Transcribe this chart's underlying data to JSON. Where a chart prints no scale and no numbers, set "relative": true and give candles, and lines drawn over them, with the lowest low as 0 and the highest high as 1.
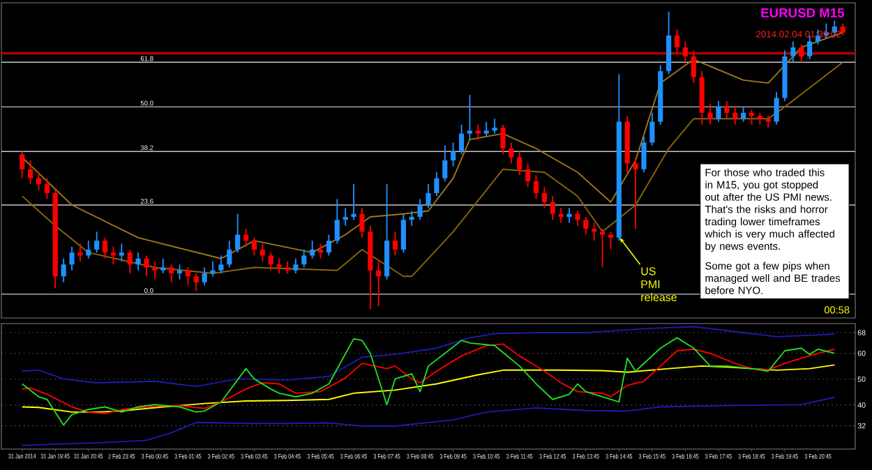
{
  "chart_data": [
    {
      "type": "candlestick",
      "relative": true,
      "title": "EURUSD M15",
      "tick_labels": false,
      "categories": [
        null,
        null,
        null,
        null,
        null,
        null,
        null,
        null,
        null,
        null,
        null,
        null,
        null,
        null,
        null,
        null,
        null,
        null,
        null,
        null,
        null,
        null,
        null,
        null,
        null,
        null,
        null,
        null,
        null,
        null,
        null,
        null,
        null,
        null,
        null,
        null,
        null,
        null,
        null,
        null,
        null,
        null,
        null,
        null,
        null,
        null,
        null,
        null,
        null,
        null,
        null,
        null,
        null,
        null,
        null,
        null,
        null,
        null,
        null,
        null,
        null,
        null,
        null,
        null,
        null,
        null,
        null,
        null,
        null,
        null,
        null,
        null,
        null,
        null,
        null,
        null,
        null,
        null,
        null,
        null,
        null,
        null,
        null,
        null,
        null,
        null,
        null,
        null,
        null,
        null,
        null,
        null,
        null,
        null,
        null,
        null,
        null,
        null,
        null,
        null
      ],
      "ohlc": [
        [
          0.52,
          0.53,
          0.44,
          0.47
        ],
        [
          0.47,
          0.5,
          0.42,
          0.44
        ],
        [
          0.44,
          0.46,
          0.4,
          0.42
        ],
        [
          0.42,
          0.44,
          0.37,
          0.39
        ],
        [
          0.39,
          0.4,
          0.07,
          0.11
        ],
        [
          0.11,
          0.17,
          0.09,
          0.15
        ],
        [
          0.15,
          0.21,
          0.13,
          0.19
        ],
        [
          0.19,
          0.22,
          0.16,
          0.18
        ],
        [
          0.18,
          0.23,
          0.17,
          0.2
        ],
        [
          0.2,
          0.26,
          0.19,
          0.23
        ],
        [
          0.23,
          0.24,
          0.17,
          0.19
        ],
        [
          0.19,
          0.21,
          0.15,
          0.18
        ],
        [
          0.18,
          0.22,
          0.16,
          0.19
        ],
        [
          0.19,
          0.2,
          0.12,
          0.15
        ],
        [
          0.15,
          0.19,
          0.13,
          0.17
        ],
        [
          0.17,
          0.18,
          0.11,
          0.14
        ],
        [
          0.14,
          0.16,
          0.1,
          0.13
        ],
        [
          0.13,
          0.17,
          0.12,
          0.14
        ],
        [
          0.14,
          0.15,
          0.09,
          0.12
        ],
        [
          0.12,
          0.15,
          0.1,
          0.13
        ],
        [
          0.13,
          0.14,
          0.08,
          0.11
        ],
        [
          0.11,
          0.12,
          0.06,
          0.09
        ],
        [
          0.09,
          0.14,
          0.08,
          0.12
        ],
        [
          0.12,
          0.16,
          0.11,
          0.13
        ],
        [
          0.13,
          0.18,
          0.12,
          0.15
        ],
        [
          0.15,
          0.23,
          0.14,
          0.2
        ],
        [
          0.2,
          0.32,
          0.19,
          0.25
        ],
        [
          0.25,
          0.27,
          0.21,
          0.23
        ],
        [
          0.23,
          0.24,
          0.18,
          0.2
        ],
        [
          0.2,
          0.22,
          0.16,
          0.18
        ],
        [
          0.18,
          0.19,
          0.13,
          0.15
        ],
        [
          0.15,
          0.17,
          0.12,
          0.14
        ],
        [
          0.14,
          0.16,
          0.12,
          0.13
        ],
        [
          0.13,
          0.17,
          0.12,
          0.15
        ],
        [
          0.15,
          0.2,
          0.14,
          0.18
        ],
        [
          0.18,
          0.23,
          0.17,
          0.2
        ],
        [
          0.2,
          0.22,
          0.17,
          0.19
        ],
        [
          0.19,
          0.25,
          0.18,
          0.23
        ],
        [
          0.23,
          0.37,
          0.22,
          0.3
        ],
        [
          0.3,
          0.34,
          0.28,
          0.31
        ],
        [
          0.31,
          0.42,
          0.3,
          0.32
        ],
        [
          0.32,
          0.34,
          0.24,
          0.26
        ],
        [
          0.26,
          0.28,
          0.0,
          0.13
        ],
        [
          0.13,
          0.16,
          0.01,
          0.11
        ],
        [
          0.11,
          0.42,
          0.1,
          0.23
        ],
        [
          0.23,
          0.26,
          0.18,
          0.2
        ],
        [
          0.2,
          0.32,
          0.19,
          0.3
        ],
        [
          0.3,
          0.33,
          0.28,
          0.31
        ],
        [
          0.31,
          0.37,
          0.3,
          0.35
        ],
        [
          0.35,
          0.42,
          0.34,
          0.39
        ],
        [
          0.39,
          0.46,
          0.38,
          0.44
        ],
        [
          0.44,
          0.55,
          0.43,
          0.5
        ],
        [
          0.5,
          0.56,
          0.48,
          0.53
        ],
        [
          0.53,
          0.62,
          0.52,
          0.59
        ],
        [
          0.59,
          0.72,
          0.57,
          0.6
        ],
        [
          0.6,
          0.62,
          0.57,
          0.59
        ],
        [
          0.59,
          0.63,
          0.58,
          0.6
        ],
        [
          0.6,
          0.64,
          0.59,
          0.61
        ],
        [
          0.61,
          0.62,
          0.52,
          0.54
        ],
        [
          0.54,
          0.56,
          0.49,
          0.51
        ],
        [
          0.51,
          0.53,
          0.45,
          0.47
        ],
        [
          0.47,
          0.49,
          0.41,
          0.43
        ],
        [
          0.43,
          0.45,
          0.37,
          0.39
        ],
        [
          0.39,
          0.41,
          0.34,
          0.36
        ],
        [
          0.36,
          0.38,
          0.3,
          0.32
        ],
        [
          0.32,
          0.34,
          0.29,
          0.31
        ],
        [
          0.31,
          0.34,
          0.29,
          0.32
        ],
        [
          0.32,
          0.33,
          0.28,
          0.3
        ],
        [
          0.3,
          0.31,
          0.25,
          0.27
        ],
        [
          0.27,
          0.29,
          0.23,
          0.26
        ],
        [
          0.26,
          0.27,
          0.14,
          0.25
        ],
        [
          0.25,
          0.26,
          0.2,
          0.24
        ],
        [
          0.24,
          0.79,
          0.23,
          0.63
        ],
        [
          0.63,
          0.65,
          0.46,
          0.49
        ],
        [
          0.49,
          0.51,
          0.27,
          0.47
        ],
        [
          0.47,
          0.58,
          0.46,
          0.56
        ],
        [
          0.56,
          0.66,
          0.55,
          0.63
        ],
        [
          0.63,
          0.82,
          0.62,
          0.8
        ],
        [
          0.8,
          1.0,
          0.79,
          0.92
        ],
        [
          0.92,
          0.94,
          0.86,
          0.88
        ],
        [
          0.88,
          0.9,
          0.83,
          0.85
        ],
        [
          0.85,
          0.87,
          0.76,
          0.78
        ],
        [
          0.78,
          0.8,
          0.62,
          0.66
        ],
        [
          0.66,
          0.69,
          0.62,
          0.64
        ],
        [
          0.64,
          0.7,
          0.63,
          0.68
        ],
        [
          0.68,
          0.7,
          0.64,
          0.66
        ],
        [
          0.66,
          0.68,
          0.62,
          0.64
        ],
        [
          0.64,
          0.68,
          0.63,
          0.66
        ],
        [
          0.66,
          0.67,
          0.62,
          0.65
        ],
        [
          0.65,
          0.66,
          0.62,
          0.64
        ],
        [
          0.64,
          0.65,
          0.61,
          0.63
        ],
        [
          0.63,
          0.73,
          0.62,
          0.71
        ],
        [
          0.71,
          0.87,
          0.7,
          0.85
        ],
        [
          0.85,
          0.9,
          0.83,
          0.88
        ],
        [
          0.88,
          0.89,
          0.83,
          0.85
        ],
        [
          0.85,
          0.92,
          0.84,
          0.9
        ],
        [
          0.9,
          0.94,
          0.89,
          0.92
        ],
        [
          0.92,
          0.96,
          0.91,
          0.93
        ],
        [
          0.93,
          0.97,
          0.92,
          0.95
        ],
        [
          0.95,
          0.96,
          0.92,
          0.93
        ]
      ],
      "colors": [
        "#ff0000",
        "#ff0000",
        "#ff0000",
        "#ff0000",
        "#ff0000",
        "#1e90ff",
        "#1e90ff",
        "#ff0000",
        "#1e90ff",
        "#1e90ff",
        "#ff0000",
        "#ff0000",
        "#1e90ff",
        "#ff0000",
        "#1e90ff",
        "#ff0000",
        "#ff0000",
        "#1e90ff",
        "#ff0000",
        "#1e90ff",
        "#ff0000",
        "#ff0000",
        "#1e90ff",
        "#1e90ff",
        "#1e90ff",
        "#1e90ff",
        "#1e90ff",
        "#ff0000",
        "#ff0000",
        "#ff0000",
        "#ff0000",
        "#ff0000",
        "#ff0000",
        "#1e90ff",
        "#1e90ff",
        "#1e90ff",
        "#ff0000",
        "#1e90ff",
        "#1e90ff",
        "#1e90ff",
        "#1e90ff",
        "#ff0000",
        "#ff0000",
        "#ff0000",
        "#1e90ff",
        "#ff0000",
        "#1e90ff",
        "#1e90ff",
        "#1e90ff",
        "#1e90ff",
        "#1e90ff",
        "#1e90ff",
        "#1e90ff",
        "#1e90ff",
        "#1e90ff",
        "#ff0000",
        "#1e90ff",
        "#1e90ff",
        "#ff0000",
        "#ff0000",
        "#ff0000",
        "#ff0000",
        "#ff0000",
        "#ff0000",
        "#ff0000",
        "#ff0000",
        "#1e90ff",
        "#ff0000",
        "#ff0000",
        "#ff0000",
        "#ff0000",
        "#ff0000",
        "#1e90ff",
        "#ff0000",
        "#ff0000",
        "#1e90ff",
        "#1e90ff",
        "#1e90ff",
        "#1e90ff",
        "#ff0000",
        "#ff0000",
        "#ff0000",
        "#ff0000",
        "#ff0000",
        "#1e90ff",
        "#ff0000",
        "#ff0000",
        "#1e90ff",
        "#ff0000",
        "#ff0000",
        "#ff0000",
        "#1e90ff",
        "#1e90ff",
        "#1e90ff",
        "#ff0000",
        "#1e90ff",
        "#1e90ff",
        "#1e90ff",
        "#1e90ff",
        "#ff0000"
      ],
      "series": [
        {
          "type": "line",
          "color": "#a07818",
          "values": [
            0.51,
            null,
            null,
            null,
            null,
            null,
            0.35,
            null,
            null,
            null,
            null,
            null,
            null,
            null,
            0.24,
            null,
            null,
            null,
            null,
            null,
            null,
            null,
            null,
            null,
            0.17,
            null,
            null,
            null,
            0.23,
            null,
            null,
            null,
            null,
            null,
            null,
            0.19,
            null,
            null,
            null,
            0.25,
            null,
            null,
            0.31,
            null,
            null,
            null,
            0.32,
            null,
            null,
            0.33,
            null,
            null,
            0.44,
            null,
            0.57,
            null,
            null,
            null,
            0.59,
            null,
            null,
            null,
            0.54,
            null,
            null,
            null,
            null,
            0.46,
            null,
            null,
            null,
            0.36,
            null,
            null,
            0.5,
            null,
            null,
            0.76,
            null,
            null,
            null,
            0.84,
            null,
            null,
            null,
            null,
            null,
            0.77,
            null,
            null,
            0.76,
            null,
            null,
            null,
            0.88,
            null,
            null,
            null,
            null,
            0.93
          ]
        },
        {
          "type": "line",
          "color": "#8b6508",
          "values": [
            0.38,
            null,
            null,
            null,
            0.28,
            null,
            null,
            null,
            0.19,
            null,
            null,
            null,
            null,
            null,
            null,
            null,
            0.14,
            null,
            null,
            null,
            null,
            null,
            null,
            0.12,
            null,
            null,
            null,
            null,
            0.14,
            null,
            null,
            null,
            null,
            null,
            null,
            null,
            null,
            null,
            0.13,
            null,
            null,
            0.2,
            null,
            null,
            null,
            null,
            0.11,
            0.11,
            null,
            null,
            null,
            null,
            0.26,
            null,
            null,
            null,
            null,
            null,
            0.47,
            null,
            null,
            null,
            null,
            0.46,
            null,
            null,
            null,
            0.38,
            null,
            null,
            0.26,
            null,
            null,
            null,
            0.35,
            null,
            null,
            null,
            0.54,
            null,
            null,
            0.64,
            null,
            null,
            null,
            null,
            null,
            null,
            null,
            null,
            0.64,
            null,
            0.68,
            null,
            null,
            null,
            null,
            null,
            null,
            0.83
          ]
        }
      ],
      "ref_lines": [
        {
          "axis": "y",
          "value": 0.86,
          "color": "#b00000"
        },
        {
          "axis": "y",
          "value": 0.83,
          "color": "#c8c8c8"
        },
        {
          "axis": "y",
          "value": 0.68,
          "color": "#a0a0a0"
        },
        {
          "axis": "y",
          "value": 0.53,
          "color": "#c8c8c8"
        },
        {
          "axis": "y",
          "value": 0.35,
          "color": "#c8c8c8"
        },
        {
          "axis": "y",
          "value": 0.05,
          "color": "#c8c8c8"
        }
      ],
      "annotations": [
        "2014.02.04 01:39:02",
        "US PMI release",
        "For those who traded this in M15, you got stopped out after the US PMI news. That's the risks and horror trading lower timeframes which is very much affected by news events.",
        "Some got a few pips when managed well and BE trades before NYO.",
        "00:58",
        {
          "text": "61.8",
          "y": 0.83
        },
        {
          "text": "50.0",
          "y": 0.68
        },
        {
          "text": "38.2",
          "y": 0.53
        },
        {
          "text": "23.6",
          "y": 0.35
        },
        {
          "text": "0.0",
          "y": 0.05
        }
      ]
    },
    {
      "type": "line",
      "grid": "y",
      "ylim": [
        23,
        71.5
      ],
      "yticks": [
        32,
        40,
        50,
        60,
        68
      ],
      "categories": [
        "31 Jan 2014",
        null,
        null,
        null,
        "31 Jan 19:45",
        null,
        null,
        null,
        "31 Jan 20:45",
        null,
        null,
        null,
        "2 Feb 23:45",
        null,
        null,
        null,
        "3 Feb 00:45",
        null,
        null,
        null,
        "3 Feb 01:45",
        null,
        null,
        null,
        "3 Feb 02:45",
        null,
        null,
        null,
        "3 Feb 03:45",
        null,
        null,
        null,
        "3 Feb 04:45",
        null,
        null,
        null,
        "3 Feb 05:45",
        null,
        null,
        null,
        "3 Feb 06:45",
        null,
        null,
        null,
        "3 Feb 07:45",
        null,
        null,
        null,
        "3 Feb 08:45",
        null,
        null,
        null,
        "3 Feb 09:45",
        null,
        null,
        null,
        "3 Feb 10:45",
        null,
        null,
        null,
        "3 Feb 11:45",
        null,
        null,
        null,
        "3 Feb 12:45",
        null,
        null,
        null,
        "3 Feb 13:45",
        null,
        null,
        null,
        "3 Feb 14:45",
        null,
        null,
        null,
        "3 Feb 15:45",
        null,
        null,
        null,
        "3 Feb 16:45",
        null,
        null,
        null,
        "3 Feb 17:45",
        null,
        null,
        null,
        "3 Feb 18:45",
        null,
        null,
        null,
        "3 Feb 19:45",
        null,
        null,
        null,
        "3 Feb 20:45",
        null,
        null,
        null
      ],
      "series": [
        {
          "color": "#1c1cb0",
          "values": [
            53.1,
            null,
            53.5,
            null,
            null,
            50.1,
            null,
            null,
            null,
            48.6,
            null,
            null,
            null,
            null,
            null,
            null,
            49.2,
            null,
            null,
            null,
            null,
            47.2,
            null,
            null,
            null,
            null,
            50.1,
            null,
            null,
            null,
            null,
            null,
            49.7,
            null,
            null,
            null,
            null,
            51.1,
            null,
            null,
            null,
            58.5,
            null,
            null,
            null,
            59.6,
            null,
            null,
            null,
            null,
            62.0,
            null,
            null,
            null,
            66.0,
            null,
            null,
            67.6,
            null,
            null,
            null,
            null,
            68.0,
            null,
            null,
            null,
            null,
            null,
            68.0,
            null,
            null,
            null,
            null,
            null,
            null,
            69.5,
            null,
            null,
            null,
            null,
            null,
            70.3,
            null,
            null,
            null,
            null,
            null,
            68.0,
            null,
            null,
            null,
            66.4,
            null,
            null,
            null,
            null,
            null,
            null,
            67.4,
            null
          ]
        },
        {
          "color": "#1c1cb0",
          "values": [
            24.4,
            null,
            null,
            24.8,
            null,
            null,
            null,
            null,
            null,
            25.4,
            null,
            null,
            null,
            null,
            null,
            26.4,
            null,
            null,
            29.3,
            null,
            null,
            33.3,
            null,
            null,
            null,
            null,
            null,
            32.9,
            null,
            null,
            null,
            null,
            32.9,
            null,
            null,
            null,
            null,
            33.1,
            null,
            null,
            null,
            31.9,
            null,
            null,
            null,
            31.9,
            null,
            null,
            null,
            null,
            null,
            null,
            34.3,
            null,
            null,
            null,
            37.3,
            null,
            null,
            null,
            null,
            null,
            38.9,
            null,
            null,
            null,
            null,
            null,
            37.9,
            null,
            null,
            null,
            null,
            37.7,
            null,
            null,
            null,
            39.3,
            null,
            null,
            null,
            null,
            null,
            null,
            null,
            39.8,
            null,
            null,
            null,
            null,
            null,
            null,
            null,
            null,
            40.2,
            null,
            null,
            null,
            43.0,
            null
          ]
        },
        {
          "color": "#ffff00",
          "values": [
            39.3,
            null,
            39.1,
            null,
            null,
            null,
            37.3,
            null,
            null,
            37.3,
            null,
            null,
            37.7,
            null,
            null,
            null,
            null,
            39.3,
            null,
            null,
            null,
            null,
            40.6,
            null,
            null,
            null,
            null,
            41.6,
            null,
            null,
            null,
            null,
            41.8,
            null,
            null,
            null,
            null,
            42.2,
            null,
            null,
            44.6,
            null,
            null,
            null,
            null,
            45.8,
            null,
            null,
            null,
            null,
            48.2,
            null,
            null,
            null,
            null,
            51.7,
            null,
            null,
            53.5,
            null,
            null,
            null,
            null,
            null,
            null,
            53.5,
            null,
            null,
            null,
            null,
            53.3,
            null,
            null,
            52.7,
            null,
            null,
            null,
            null,
            54.1,
            null,
            null,
            null,
            55.1,
            null,
            null,
            54.7,
            null,
            null,
            null,
            null,
            null,
            53.5,
            null,
            null,
            null,
            54.1,
            null,
            null,
            55.5,
            null
          ]
        },
        {
          "color": "#ff0000",
          "values": [
            46.2,
            46.6,
            null,
            44.2,
            null,
            null,
            39.3,
            null,
            37.3,
            null,
            36.7,
            null,
            38.3,
            null,
            null,
            null,
            39.6,
            null,
            null,
            39.8,
            null,
            null,
            38.7,
            null,
            41.2,
            null,
            null,
            46.2,
            null,
            48.6,
            null,
            48.2,
            null,
            44.6,
            null,
            null,
            45.2,
            null,
            null,
            50.5,
            null,
            56.1,
            null,
            null,
            54.1,
            55.1,
            null,
            50.1,
            48.6,
            null,
            53.1,
            null,
            null,
            59.0,
            null,
            null,
            63.0,
            null,
            63.6,
            null,
            59.0,
            null,
            null,
            53.1,
            null,
            48.6,
            null,
            45.2,
            null,
            null,
            44.6,
            43.2,
            null,
            47.6,
            null,
            49.2,
            null,
            55.1,
            null,
            61.0,
            null,
            61.6,
            null,
            60.0,
            null,
            null,
            56.1,
            null,
            54.1,
            null,
            53.7,
            null,
            56.1,
            null,
            58.1,
            null,
            60.0,
            null,
            61.6,
            null
          ]
        },
        {
          "color": "#22dd22",
          "values": [
            48.2,
            null,
            43.2,
            42.2,
            null,
            32.3,
            36.3,
            null,
            38.3,
            null,
            39.3,
            null,
            37.3,
            null,
            39.3,
            null,
            40.2,
            null,
            null,
            39.3,
            null,
            37.3,
            37.7,
            null,
            41.2,
            null,
            null,
            54.1,
            50.1,
            null,
            46.2,
            44.6,
            null,
            43.2,
            null,
            44.6,
            null,
            48.2,
            null,
            null,
            65.6,
            65.0,
            60.0,
            null,
            40.2,
            50.1,
            null,
            52.1,
            45.2,
            55.1,
            null,
            60.0,
            null,
            65.0,
            64.0,
            null,
            null,
            63.0,
            null,
            null,
            55.1,
            null,
            48.2,
            null,
            42.2,
            null,
            44.2,
            48.2,
            45.2,
            null,
            43.2,
            null,
            41.2,
            58.1,
            53.1,
            null,
            null,
            62.0,
            null,
            66.0,
            null,
            62.0,
            null,
            55.1,
            null,
            55.1,
            null,
            null,
            54.1,
            null,
            53.1,
            null,
            61.0,
            null,
            62.0,
            59.6,
            61.6,
            null,
            60.0,
            null
          ]
        }
      ]
    }
  ]
}
